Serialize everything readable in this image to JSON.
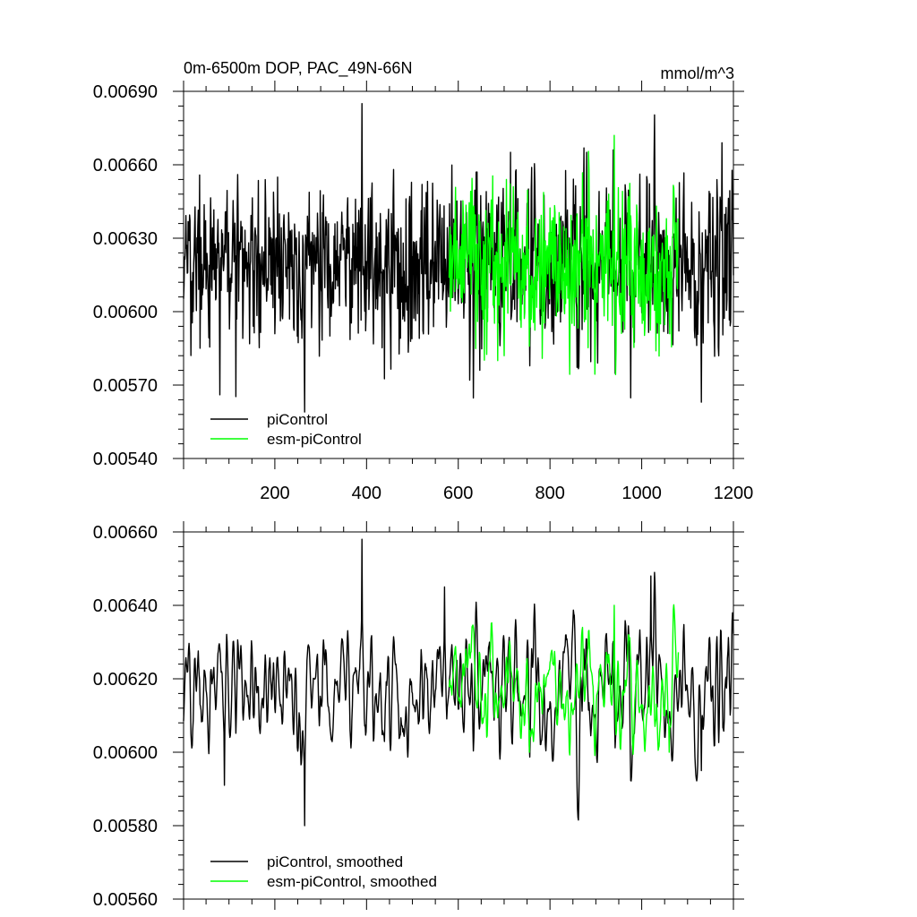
{
  "chart_data": [
    {
      "type": "line",
      "title": "0m-6500m DOP, PAC_49N-66N",
      "units": "mmol/m^3",
      "xlim": [
        1,
        1200
      ],
      "ylim": [
        0.0054,
        0.0069
      ],
      "ytick_values": [
        0.0054,
        0.0057,
        0.006,
        0.0063,
        0.0066,
        0.0069
      ],
      "ytick_labels": [
        "0.00540",
        "0.00570",
        "0.00600",
        "0.00630",
        "0.00660",
        "0.00690"
      ],
      "xtick_values": [
        200,
        400,
        600,
        800,
        1000,
        1200
      ],
      "xtick_labels": [
        "200",
        "400",
        "600",
        "800",
        "1000",
        "1200"
      ],
      "legend_position": "bottom-left",
      "series": [
        {
          "name": "piControl",
          "color": "#000000",
          "x_start": 1,
          "x_end": 1200,
          "mean": 0.0062,
          "sd": 0.00016,
          "extremes": [
            [
              80,
              0.00566
            ],
            [
              265,
              0.00559
            ],
            [
              390,
              0.00685
            ],
            [
              625,
              0.00572
            ],
            [
              1130,
              0.00563
            ],
            [
              1175,
              0.00669
            ]
          ]
        },
        {
          "name": "esm-piControl",
          "color": "#00ff00",
          "x_start": 580,
          "x_end": 1080,
          "mean": 0.00619,
          "sd": 0.00016,
          "extremes": [
            [
              940,
              0.00672
            ],
            [
              700,
              0.00582
            ],
            [
              720,
              0.00651
            ]
          ]
        }
      ]
    },
    {
      "type": "line",
      "title": "",
      "ylim": [
        0.0056,
        0.0066
      ],
      "xlim": [
        1,
        1200
      ],
      "ytick_values": [
        0.0056,
        0.0058,
        0.006,
        0.0062,
        0.0064,
        0.0066
      ],
      "ytick_labels": [
        "0.00560",
        "0.00580",
        "0.00600",
        "0.00620",
        "0.00640",
        "0.00660"
      ],
      "legend_position": "bottom-left",
      "series": [
        {
          "name": "piControl, smoothed",
          "color": "#000000",
          "x_start": 1,
          "x_end": 1200,
          "mean": 0.00617,
          "sd": 9e-05,
          "extremes": [
            [
              90,
              0.00591
            ],
            [
              265,
              0.0058
            ],
            [
              390,
              0.00658
            ],
            [
              570,
              0.00645
            ],
            [
              1020,
              0.00648
            ],
            [
              1130,
              0.00595
            ]
          ]
        },
        {
          "name": "esm-piControl, smoothed",
          "color": "#00ff00",
          "x_start": 580,
          "x_end": 1080,
          "mean": 0.00617,
          "sd": 8e-05,
          "extremes": [
            [
              940,
              0.0064
            ],
            [
              755,
              0.006
            ],
            [
              1060,
              0.006
            ]
          ]
        }
      ]
    }
  ]
}
